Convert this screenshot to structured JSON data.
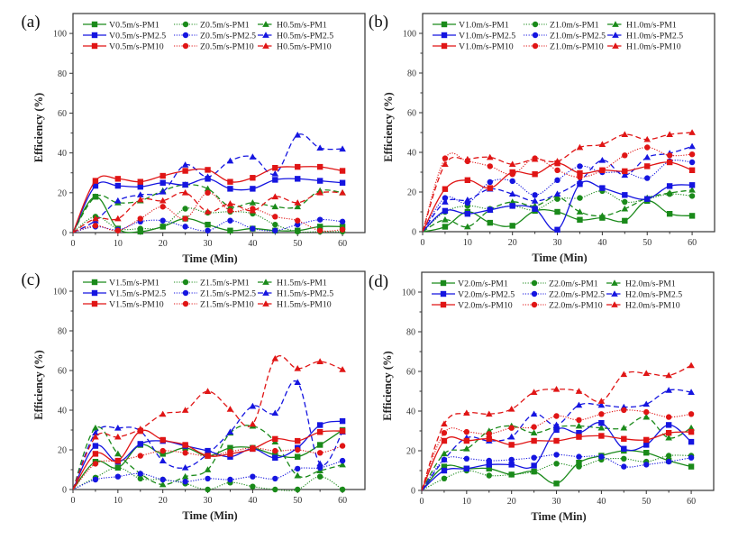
{
  "figure": {
    "panels_layout": "2x2 grid"
  },
  "chart_data": [
    {
      "type": "line",
      "panel_label": "(a)",
      "title": "",
      "xlabel": "Time (Min)",
      "ylabel": "Efficiency (%)",
      "xlim": [
        0,
        65
      ],
      "ylim": [
        0,
        110
      ],
      "xticks": [
        0,
        10,
        20,
        30,
        40,
        50,
        60
      ],
      "yticks": [
        0,
        20,
        40,
        60,
        80,
        100
      ],
      "grid": false,
      "legend_position": "top-left",
      "x": [
        0,
        5,
        10,
        15,
        20,
        25,
        30,
        35,
        40,
        45,
        50,
        55,
        60
      ],
      "series": [
        {
          "name": "V0.5m/s-PM1",
          "color": "#1a8a1a",
          "style": "solid",
          "marker": "square",
          "values": [
            0,
            18,
            2,
            0.5,
            3,
            7,
            4,
            1,
            2,
            1,
            1,
            3,
            3
          ]
        },
        {
          "name": "Z0.5m/s-PM1",
          "color": "#1a8a1a",
          "style": "dotted",
          "marker": "circle",
          "values": [
            0,
            8,
            2,
            2,
            3,
            12,
            10,
            10.5,
            9.5,
            4,
            0.5,
            0.5,
            0.5
          ]
        },
        {
          "name": "H0.5m/s-PM1",
          "color": "#1a8a1a",
          "style": "dashed",
          "marker": "triangle",
          "values": [
            0,
            18,
            15,
            16,
            21,
            24,
            22,
            13,
            15,
            13,
            13,
            21,
            20
          ]
        },
        {
          "name": "V0.5m/s-PM2.5",
          "color": "#1515e0",
          "style": "solid",
          "marker": "square",
          "values": [
            0,
            23.5,
            23.5,
            23,
            25,
            24,
            27,
            22,
            22,
            26.5,
            27,
            26,
            25
          ]
        },
        {
          "name": "Z0.5m/s-PM2.5",
          "color": "#1515e0",
          "style": "dotted",
          "marker": "circle",
          "values": [
            0,
            3,
            1.5,
            5.5,
            6,
            3,
            1,
            6,
            2,
            1,
            4,
            6.5,
            5.5
          ]
        },
        {
          "name": "H0.5m/s-PM2.5",
          "color": "#1515e0",
          "style": "dashed",
          "marker": "triangle",
          "values": [
            0,
            6,
            16,
            19,
            20.5,
            34,
            28,
            36,
            38,
            29.5,
            49,
            42.5,
            42
          ]
        },
        {
          "name": "V0.5m/s-PM10",
          "color": "#e01515",
          "style": "solid",
          "marker": "square",
          "values": [
            0,
            26,
            27,
            25.5,
            28.5,
            31,
            31.5,
            25.5,
            27.5,
            32.5,
            33,
            33,
            31
          ]
        },
        {
          "name": "Z0.5m/s-PM10",
          "color": "#e01515",
          "style": "dotted",
          "marker": "circle",
          "values": [
            0,
            3.5,
            1,
            7,
            13,
            7,
            20,
            11,
            12,
            8,
            6,
            1,
            1.5
          ]
        },
        {
          "name": "H0.5m/s-PM10",
          "color": "#e01515",
          "style": "dashed",
          "marker": "triangle",
          "values": [
            0,
            7,
            7,
            16.5,
            16,
            20,
            10.5,
            14.5,
            11,
            18,
            15,
            20,
            20
          ]
        }
      ]
    },
    {
      "type": "line",
      "panel_label": "(b)",
      "title": "",
      "xlabel": "Time (Min)",
      "ylabel": "Efficiency (%)",
      "xlim": [
        0,
        65
      ],
      "ylim": [
        0,
        110
      ],
      "xticks": [
        0,
        10,
        20,
        30,
        40,
        50,
        60
      ],
      "yticks": [
        0,
        20,
        40,
        60,
        80,
        100
      ],
      "grid": false,
      "legend_position": "top-left",
      "x": [
        0,
        5,
        10,
        15,
        20,
        25,
        30,
        35,
        40,
        45,
        50,
        55,
        60
      ],
      "series": [
        {
          "name": "V1.0m/s-PM1",
          "color": "#1a8a1a",
          "style": "solid",
          "marker": "square",
          "values": [
            0,
            2.5,
            10,
            4.5,
            3,
            10.5,
            10,
            6,
            7,
            5.5,
            15.5,
            9,
            8
          ]
        },
        {
          "name": "Z1.0m/s-PM1",
          "color": "#1a8a1a",
          "style": "dotted",
          "marker": "circle",
          "values": [
            0,
            10,
            13,
            11.5,
            13,
            11,
            16.5,
            17,
            20.5,
            15,
            16.5,
            19,
            18
          ]
        },
        {
          "name": "H1.0m/s-PM1",
          "color": "#1a8a1a",
          "style": "dashed",
          "marker": "triangle",
          "values": [
            0,
            6,
            2.5,
            11,
            15,
            13,
            17.5,
            10,
            8,
            11.5,
            17,
            19.5,
            21
          ]
        },
        {
          "name": "V1.0m/s-PM2.5",
          "color": "#1515e0",
          "style": "solid",
          "marker": "square",
          "values": [
            0,
            10.5,
            9,
            11,
            13,
            11.5,
            1,
            24,
            22,
            18.5,
            16.5,
            23,
            23.5
          ]
        },
        {
          "name": "Z1.0m/s-PM2.5",
          "color": "#1515e0",
          "style": "dotted",
          "marker": "circle",
          "values": [
            0,
            17,
            14.5,
            25,
            25.5,
            18.5,
            26,
            33,
            30,
            30,
            27,
            35.5,
            35
          ]
        },
        {
          "name": "H1.0m/s-PM2.5",
          "color": "#1515e0",
          "style": "dashed",
          "marker": "triangle",
          "values": [
            0,
            15,
            16,
            21.5,
            19,
            15.5,
            19,
            25.5,
            36,
            28.5,
            37.5,
            39.5,
            43
          ]
        },
        {
          "name": "V1.0m/s-PM10",
          "color": "#e01515",
          "style": "solid",
          "marker": "square",
          "values": [
            0,
            21.5,
            26,
            22,
            30,
            29,
            34.5,
            29.5,
            31,
            30.5,
            33,
            35,
            31
          ]
        },
        {
          "name": "Z1.0m/s-PM10",
          "color": "#e01515",
          "style": "dotted",
          "marker": "circle",
          "values": [
            0,
            37,
            35.5,
            33,
            29,
            37,
            31,
            27.5,
            31,
            38.5,
            42.5,
            38.5,
            39
          ]
        },
        {
          "name": "H1.0m/s-PM10",
          "color": "#e01515",
          "style": "dashed",
          "marker": "triangle",
          "values": [
            0,
            34,
            36.5,
            37.5,
            34,
            36.5,
            35.5,
            42.5,
            44,
            49,
            46.5,
            49,
            50
          ]
        }
      ]
    },
    {
      "type": "line",
      "panel_label": "(c)",
      "title": "",
      "xlabel": "Time (Min)",
      "ylabel": "Efficiency (%)",
      "xlim": [
        0,
        65
      ],
      "ylim": [
        0,
        110
      ],
      "xticks": [
        0,
        10,
        20,
        30,
        40,
        50,
        60
      ],
      "yticks": [
        0,
        20,
        40,
        60,
        80,
        100
      ],
      "grid": false,
      "legend_position": "top-left",
      "x": [
        0,
        5,
        10,
        15,
        20,
        25,
        30,
        35,
        40,
        45,
        50,
        55,
        60
      ],
      "series": [
        {
          "name": "V1.5m/s-PM1",
          "color": "#1a8a1a",
          "style": "solid",
          "marker": "square",
          "values": [
            0,
            14,
            11,
            22.5,
            18,
            21,
            17,
            21,
            21,
            17.5,
            16.5,
            22.5,
            30
          ]
        },
        {
          "name": "Z1.5m/s-PM1",
          "color": "#1a8a1a",
          "style": "dotted",
          "marker": "circle",
          "values": [
            0,
            6,
            11,
            5.5,
            5,
            3,
            0,
            3.5,
            1.5,
            0,
            0,
            6.5,
            0
          ]
        },
        {
          "name": "H1.5m/s-PM1",
          "color": "#1a8a1a",
          "style": "dashed",
          "marker": "triangle",
          "values": [
            0,
            31,
            18,
            8,
            2.5,
            6.5,
            10,
            28.5,
            32,
            24,
            7,
            9.5,
            12.5
          ]
        },
        {
          "name": "V1.5m/s-PM2.5",
          "color": "#1515e0",
          "style": "solid",
          "marker": "square",
          "values": [
            0,
            22,
            14,
            23,
            24.5,
            22,
            19.5,
            16.5,
            20.5,
            16,
            21,
            32.5,
            34.5
          ]
        },
        {
          "name": "Z1.5m/s-PM2.5",
          "color": "#1515e0",
          "style": "dotted",
          "marker": "circle",
          "values": [
            0,
            5,
            6.5,
            8,
            5,
            4,
            5.5,
            5,
            6.5,
            5.5,
            10.5,
            11,
            14.5
          ]
        },
        {
          "name": "H1.5m/s-PM2.5",
          "color": "#1515e0",
          "style": "dashed",
          "marker": "triangle",
          "values": [
            0,
            28.5,
            31,
            29.5,
            14.5,
            11,
            18,
            29,
            42,
            38.5,
            54,
            13,
            29
          ]
        },
        {
          "name": "V1.5m/s-PM10",
          "color": "#e01515",
          "style": "solid",
          "marker": "square",
          "values": [
            0,
            18,
            14.5,
            29.5,
            25,
            22.5,
            17,
            18,
            20.5,
            25.5,
            24.5,
            29,
            29.5
          ]
        },
        {
          "name": "Z1.5m/s-PM10",
          "color": "#e01515",
          "style": "dotted",
          "marker": "circle",
          "values": [
            0,
            13,
            14.5,
            17,
            19.5,
            18.5,
            17,
            19,
            21,
            19.5,
            20,
            18.5,
            22
          ]
        },
        {
          "name": "H1.5m/s-PM10",
          "color": "#e01515",
          "style": "dashed",
          "marker": "triangle",
          "values": [
            0,
            26.5,
            26.5,
            30.5,
            38,
            40,
            49.5,
            40.5,
            33,
            66,
            61,
            64.5,
            60.5
          ]
        }
      ]
    },
    {
      "type": "line",
      "panel_label": "(d)",
      "title": "",
      "xlabel": "Time (Min)",
      "ylabel": "Efficiency (%)",
      "xlim": [
        0,
        65
      ],
      "ylim": [
        0,
        110
      ],
      "xticks": [
        0,
        10,
        20,
        30,
        40,
        50,
        60
      ],
      "yticks": [
        0,
        20,
        40,
        60,
        80,
        100
      ],
      "grid": false,
      "legend_position": "top-left",
      "x": [
        0,
        5,
        10,
        15,
        20,
        25,
        30,
        35,
        40,
        45,
        50,
        55,
        60
      ],
      "series": [
        {
          "name": "V2.0m/s-PM1",
          "color": "#1a8a1a",
          "style": "solid",
          "marker": "square",
          "values": [
            0,
            12,
            11,
            11,
            8,
            9.5,
            3.5,
            14,
            17.5,
            20,
            19,
            15,
            12
          ]
        },
        {
          "name": "Z2.0m/s-PM1",
          "color": "#1a8a1a",
          "style": "dotted",
          "marker": "circle",
          "values": [
            0,
            6,
            10,
            7.5,
            8,
            9.5,
            13.5,
            12,
            15.5,
            16,
            14.5,
            17.5,
            17.5
          ]
        },
        {
          "name": "H2.0m/s-PM1",
          "color": "#1a8a1a",
          "style": "dashed",
          "marker": "triangle",
          "values": [
            0,
            18.5,
            21,
            30,
            32.5,
            29,
            32,
            32.5,
            31.5,
            31.5,
            37,
            26.5,
            31.5
          ]
        },
        {
          "name": "V2.0m/s-PM2.5",
          "color": "#1515e0",
          "style": "solid",
          "marker": "square",
          "values": [
            0,
            10,
            11,
            13,
            13,
            12.5,
            30.5,
            29,
            34,
            21,
            23,
            33,
            24.5
          ]
        },
        {
          "name": "Z2.0m/s-PM2.5",
          "color": "#1515e0",
          "style": "dotted",
          "marker": "circle",
          "values": [
            0,
            15.5,
            16,
            15,
            15.5,
            16.5,
            18,
            17,
            17,
            12,
            13,
            14.5,
            16.5
          ]
        },
        {
          "name": "H2.0m/s-PM2.5",
          "color": "#1515e0",
          "style": "dashed",
          "marker": "triangle",
          "values": [
            0,
            15.5,
            26.5,
            25,
            27,
            38.5,
            33,
            43,
            43,
            42,
            43.5,
            50.5,
            49.5
          ]
        },
        {
          "name": "V2.0m/s-PM10",
          "color": "#e01515",
          "style": "solid",
          "marker": "square",
          "values": [
            0,
            25,
            25,
            26,
            23,
            25,
            25,
            27,
            27.5,
            26,
            25.5,
            29,
            29.5
          ]
        },
        {
          "name": "Z2.0m/s-PM10",
          "color": "#e01515",
          "style": "dotted",
          "marker": "circle",
          "values": [
            0,
            29,
            29.5,
            28.5,
            31.5,
            32,
            37.5,
            35.5,
            38.5,
            40.5,
            39.5,
            37,
            38.5
          ]
        },
        {
          "name": "H2.0m/s-PM10",
          "color": "#e01515",
          "style": "dashed",
          "marker": "triangle",
          "values": [
            0,
            33.5,
            39,
            38.5,
            41,
            49.5,
            51,
            50,
            45,
            58.5,
            59,
            58,
            63
          ]
        }
      ]
    }
  ]
}
